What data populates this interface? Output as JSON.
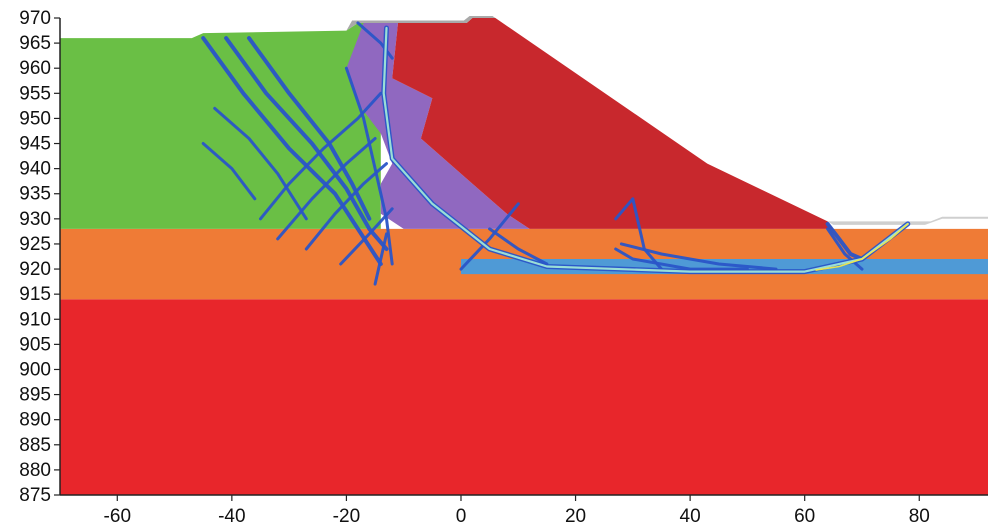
{
  "chart_data": {
    "type": "diagram",
    "x": {
      "min": -70,
      "max": 92,
      "ticks": [
        -60,
        -40,
        -20,
        0,
        20,
        40,
        60,
        80
      ]
    },
    "y": {
      "min": 875,
      "max": 970,
      "ticks": [
        970,
        965,
        960,
        955,
        950,
        945,
        940,
        935,
        930,
        925,
        920,
        915,
        910,
        905,
        900,
        895,
        890,
        885,
        880,
        875
      ]
    },
    "layers": [
      {
        "id": "bedrock",
        "color": "#e8262b",
        "polygon": [
          [
            -70,
            914
          ],
          [
            92,
            914
          ],
          [
            92,
            875
          ],
          [
            -70,
            875
          ]
        ]
      },
      {
        "id": "orange-stratum",
        "color": "#ef7b36",
        "polygon": [
          [
            -70,
            928
          ],
          [
            92,
            928
          ],
          [
            92,
            914
          ],
          [
            -70,
            914
          ]
        ]
      },
      {
        "id": "blue-weak-band",
        "color": "#4f9ad6",
        "polygon": [
          [
            0,
            922
          ],
          [
            92,
            922
          ],
          [
            92,
            919
          ],
          [
            0,
            919
          ]
        ]
      },
      {
        "id": "green-slope",
        "color": "#6abf45",
        "polygon": [
          [
            -70,
            966
          ],
          [
            -47,
            966
          ],
          [
            -45,
            967
          ],
          [
            -20,
            967.5
          ],
          [
            -18,
            969
          ],
          [
            -14,
            969
          ],
          [
            -14,
            928
          ],
          [
            -70,
            928
          ]
        ]
      },
      {
        "id": "purple-zone",
        "color": "#9068c0",
        "polygon": [
          [
            -17,
            969
          ],
          [
            -11,
            969
          ],
          [
            -12,
            958
          ],
          [
            -5,
            954
          ],
          [
            -7,
            946
          ],
          [
            1,
            938
          ],
          [
            8,
            931
          ],
          [
            12,
            928
          ],
          [
            -10,
            928
          ],
          [
            -14,
            931
          ],
          [
            -14,
            937
          ],
          [
            -12,
            941
          ],
          [
            -14,
            947
          ],
          [
            -18,
            953
          ],
          [
            -20,
            960
          ]
        ]
      },
      {
        "id": "dam-body",
        "color": "#c8282d",
        "polygon": [
          [
            -11,
            969
          ],
          [
            1,
            969
          ],
          [
            2,
            970
          ],
          [
            6,
            970
          ],
          [
            43,
            941
          ],
          [
            64,
            929.5
          ],
          [
            65,
            928
          ],
          [
            12,
            928
          ],
          [
            8,
            931
          ],
          [
            1,
            938
          ],
          [
            -7,
            946
          ],
          [
            -5,
            954
          ],
          [
            -12,
            958
          ]
        ]
      },
      {
        "id": "crest-cap",
        "color": "#a9a9a9",
        "polygon": [
          [
            -20,
            967.5
          ],
          [
            -18,
            969
          ],
          [
            1,
            969
          ],
          [
            2,
            970
          ],
          [
            6,
            970
          ],
          [
            5.5,
            970.4
          ],
          [
            1.5,
            970.4
          ],
          [
            0.5,
            969.5
          ],
          [
            -19,
            969.5
          ]
        ]
      },
      {
        "id": "toe-fill",
        "color": "#cfcfcf",
        "polygon": [
          [
            64,
            929.5
          ],
          [
            82,
            929.5
          ],
          [
            84,
            930.4
          ],
          [
            92,
            930.4
          ],
          [
            92,
            930
          ],
          [
            84,
            930
          ],
          [
            81,
            928.8
          ],
          [
            65,
            928.8
          ]
        ]
      }
    ],
    "shear_bands": [
      {
        "width": 5,
        "color": "#2a55c8",
        "points": [
          [
            -13,
            968
          ],
          [
            -13.5,
            955
          ],
          [
            -12,
            942
          ],
          [
            -5,
            933
          ],
          [
            5,
            924
          ],
          [
            15,
            920.5
          ],
          [
            40,
            919.5
          ],
          [
            60,
            919.5
          ],
          [
            70,
            922
          ],
          [
            78,
            929
          ]
        ]
      },
      {
        "width": 4,
        "color": "#2a55c8",
        "points": [
          [
            -45,
            966
          ],
          [
            -38,
            955
          ],
          [
            -30,
            944
          ],
          [
            -22,
            935
          ],
          [
            -18,
            928
          ],
          [
            -14,
            921
          ]
        ]
      },
      {
        "width": 4,
        "color": "#2a55c8",
        "points": [
          [
            -41,
            966
          ],
          [
            -34,
            955
          ],
          [
            -26,
            945
          ],
          [
            -20,
            936
          ],
          [
            -16,
            928
          ],
          [
            -13,
            924
          ]
        ]
      },
      {
        "width": 4,
        "color": "#2a55c8",
        "points": [
          [
            -37,
            966
          ],
          [
            -30,
            955
          ],
          [
            -23,
            945
          ],
          [
            -19,
            937
          ],
          [
            -16,
            930
          ]
        ]
      },
      {
        "width": 3,
        "color": "#2a55c8",
        "points": [
          [
            -43,
            952
          ],
          [
            -37,
            946
          ],
          [
            -32,
            939
          ],
          [
            -27,
            930
          ]
        ]
      },
      {
        "width": 3,
        "color": "#2a55c8",
        "points": [
          [
            -45,
            945
          ],
          [
            -40,
            940
          ],
          [
            -36,
            934
          ]
        ]
      },
      {
        "width": 3,
        "color": "#2a55c8",
        "points": [
          [
            -35,
            930
          ],
          [
            -30,
            937
          ],
          [
            -24,
            944
          ],
          [
            -18,
            950
          ],
          [
            -14,
            955
          ]
        ]
      },
      {
        "width": 3,
        "color": "#2a55c8",
        "points": [
          [
            -32,
            926
          ],
          [
            -26,
            934
          ],
          [
            -20,
            941
          ],
          [
            -15,
            946
          ]
        ]
      },
      {
        "width": 3,
        "color": "#2a55c8",
        "points": [
          [
            -27,
            924
          ],
          [
            -22,
            931
          ],
          [
            -17,
            937
          ],
          [
            -13,
            941
          ]
        ]
      },
      {
        "width": 3,
        "color": "#2a55c8",
        "points": [
          [
            -21,
            921
          ],
          [
            -16,
            927
          ],
          [
            -12,
            932
          ]
        ]
      },
      {
        "width": 3,
        "color": "#2a55c8",
        "points": [
          [
            -15,
            917
          ],
          [
            -14,
            922
          ],
          [
            -13,
            927
          ]
        ]
      },
      {
        "width": 3,
        "color": "#2a55c8",
        "points": [
          [
            -20,
            960
          ],
          [
            -17,
            950
          ],
          [
            -15,
            940
          ],
          [
            -13,
            930
          ],
          [
            -12,
            921
          ]
        ]
      },
      {
        "width": 3,
        "color": "#2a55c8",
        "points": [
          [
            -18,
            969
          ],
          [
            -14,
            965
          ],
          [
            -12,
            962
          ]
        ]
      },
      {
        "width": 3,
        "color": "#2a55c8",
        "points": [
          [
            5,
            928
          ],
          [
            10,
            924
          ],
          [
            15,
            921
          ]
        ]
      },
      {
        "width": 3,
        "color": "#2a55c8",
        "points": [
          [
            0,
            920
          ],
          [
            5,
            926
          ],
          [
            10,
            933
          ]
        ]
      },
      {
        "width": 3,
        "color": "#2a55c8",
        "points": [
          [
            27,
            930
          ],
          [
            30,
            934
          ],
          [
            32,
            924
          ],
          [
            35,
            920
          ]
        ]
      },
      {
        "width": 3,
        "color": "#2a55c8",
        "points": [
          [
            28,
            925
          ],
          [
            35,
            923
          ],
          [
            45,
            921
          ],
          [
            55,
            920
          ]
        ]
      },
      {
        "width": 3,
        "color": "#2a55c8",
        "points": [
          [
            27,
            924
          ],
          [
            30,
            922
          ],
          [
            40,
            920
          ],
          [
            50,
            920
          ]
        ]
      },
      {
        "width": 4,
        "color": "#2a55c8",
        "points": [
          [
            64,
            929
          ],
          [
            66,
            926
          ],
          [
            68,
            923
          ],
          [
            70,
            922
          ]
        ]
      },
      {
        "width": 3,
        "color": "#2a55c8",
        "points": [
          [
            64,
            928
          ],
          [
            67,
            923
          ],
          [
            70,
            920
          ]
        ]
      }
    ],
    "shear_core": [
      {
        "width": 2.2,
        "color": "#9fe6d8",
        "points": [
          [
            -13,
            968
          ],
          [
            -13.5,
            955
          ],
          [
            -12,
            942
          ],
          [
            -5,
            933
          ],
          [
            5,
            924
          ],
          [
            15,
            920.5
          ],
          [
            40,
            919.5
          ],
          [
            60,
            919.5
          ],
          [
            70,
            922
          ],
          [
            78,
            929
          ]
        ]
      },
      {
        "width": 1.6,
        "color": "#f2ea4a",
        "points": [
          [
            62,
            919.8
          ],
          [
            66,
            920.5
          ],
          [
            70,
            922
          ],
          [
            75,
            926
          ],
          [
            78,
            929
          ]
        ]
      }
    ]
  }
}
